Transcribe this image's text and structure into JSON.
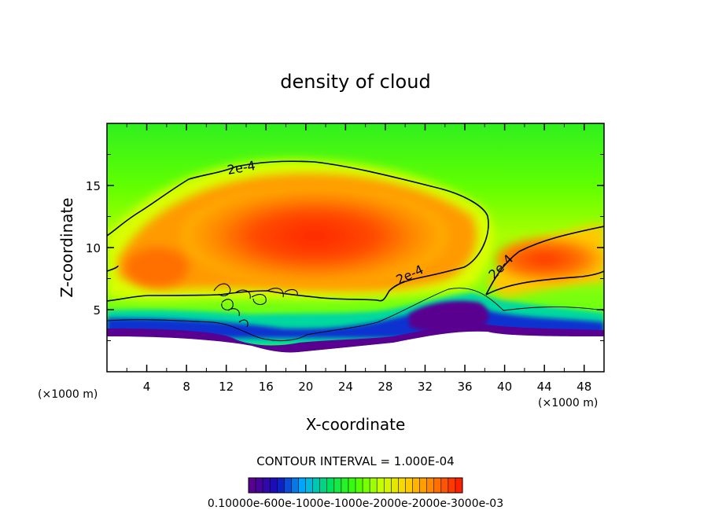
{
  "chart_data": {
    "type": "heatmap",
    "title": "density of cloud",
    "xlabel": "X-coordinate",
    "ylabel": "Z-coordinate",
    "x_unit": "(×1000 m)",
    "y_unit": "(×1000 m)",
    "xlim": [
      0,
      50
    ],
    "ylim": [
      0,
      20
    ],
    "x_ticks": [
      "4",
      "8",
      "12",
      "16",
      "20",
      "24",
      "28",
      "32",
      "36",
      "40",
      "44",
      "48"
    ],
    "y_ticks": [
      "5",
      "10",
      "15"
    ],
    "x_tick_values": [
      4,
      8,
      12,
      16,
      20,
      24,
      28,
      32,
      36,
      40,
      44,
      48
    ],
    "y_tick_values": [
      5,
      10,
      15
    ],
    "contour_label": "2e-4",
    "contour_level": 0.0002,
    "contour_interval_text": "CONTOUR INTERVAL = 1.000E-04",
    "colorbar_labels_text": "0.10000e-600e-1000e-1000e-2000e-2000e-3000e-03",
    "field_range": [
      1e-05,
      0.0003
    ],
    "colorscale": [
      "#5a0090",
      "#1010c0",
      "#00b0ff",
      "#00e060",
      "#40ff00",
      "#c8ff00",
      "#ffd000",
      "#ff8000",
      "#ff2000"
    ]
  }
}
